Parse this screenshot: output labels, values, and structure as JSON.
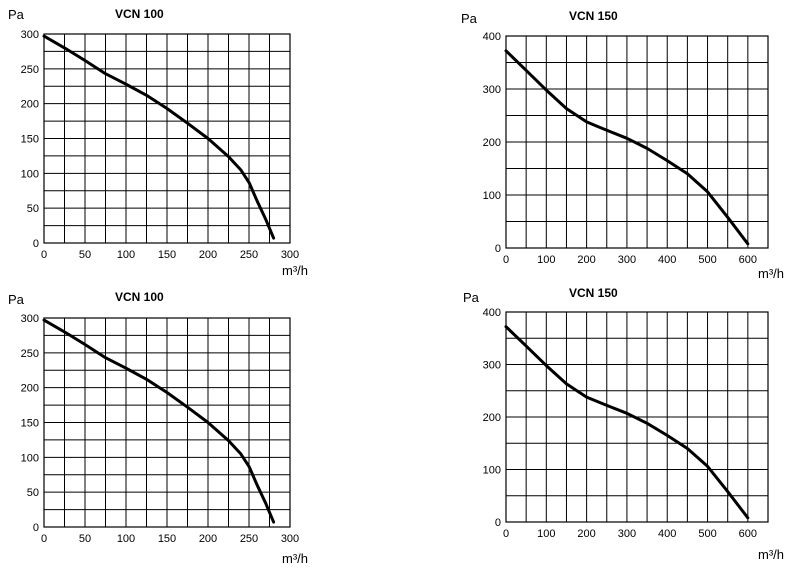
{
  "chart_data": [
    {
      "type": "line",
      "title": "VCN 100",
      "ylabel": "Pa",
      "xlabel": "m³/h",
      "xlim": [
        0,
        300
      ],
      "ylim": [
        0,
        300
      ],
      "xticks": [
        0,
        50,
        100,
        150,
        200,
        250,
        300
      ],
      "yticks": [
        0,
        50,
        100,
        150,
        200,
        250,
        300
      ],
      "x_minor_step": 25,
      "y_minor_step": 25,
      "grid": true,
      "series": [
        {
          "x": [
            0,
            25,
            50,
            75,
            100,
            125,
            150,
            175,
            200,
            225,
            240,
            250,
            260,
            270,
            280
          ],
          "y": [
            297,
            280,
            262,
            243,
            228,
            212,
            193,
            172,
            150,
            124,
            105,
            87,
            60,
            35,
            7
          ]
        }
      ]
    },
    {
      "type": "line",
      "title": "VCN 150",
      "ylabel": "Pa",
      "xlabel": "m³/h",
      "xlim": [
        0,
        650
      ],
      "ylim": [
        0,
        400
      ],
      "xticks": [
        0,
        100,
        200,
        300,
        400,
        500,
        600
      ],
      "yticks": [
        0,
        100,
        200,
        300,
        400
      ],
      "x_minor_step": 50,
      "y_minor_step": 50,
      "grid": true,
      "series": [
        {
          "x": [
            0,
            50,
            100,
            150,
            200,
            250,
            300,
            350,
            400,
            450,
            500,
            550,
            600
          ],
          "y": [
            372,
            335,
            298,
            263,
            238,
            222,
            207,
            188,
            165,
            140,
            106,
            58,
            8
          ]
        }
      ]
    },
    {
      "type": "line",
      "title": "VCN 100",
      "ylabel": "Pa",
      "xlabel": "m³/h",
      "xlim": [
        0,
        300
      ],
      "ylim": [
        0,
        300
      ],
      "xticks": [
        0,
        50,
        100,
        150,
        200,
        250,
        300
      ],
      "yticks": [
        0,
        50,
        100,
        150,
        200,
        250,
        300
      ],
      "x_minor_step": 25,
      "y_minor_step": 25,
      "grid": true,
      "series": [
        {
          "x": [
            0,
            25,
            50,
            75,
            100,
            125,
            150,
            175,
            200,
            225,
            240,
            250,
            260,
            270,
            280
          ],
          "y": [
            297,
            280,
            262,
            243,
            228,
            212,
            193,
            172,
            150,
            124,
            105,
            87,
            60,
            35,
            7
          ]
        }
      ]
    },
    {
      "type": "line",
      "title": "VCN 150",
      "ylabel": "Pa",
      "xlabel": "m³/h",
      "xlim": [
        0,
        650
      ],
      "ylim": [
        0,
        400
      ],
      "xticks": [
        0,
        100,
        200,
        300,
        400,
        500,
        600
      ],
      "yticks": [
        0,
        100,
        200,
        300,
        400
      ],
      "x_minor_step": 50,
      "y_minor_step": 50,
      "grid": true,
      "series": [
        {
          "x": [
            0,
            50,
            100,
            150,
            200,
            250,
            300,
            350,
            400,
            450,
            500,
            550,
            600
          ],
          "y": [
            372,
            335,
            298,
            263,
            238,
            222,
            207,
            188,
            165,
            140,
            106,
            58,
            8
          ]
        }
      ]
    }
  ]
}
